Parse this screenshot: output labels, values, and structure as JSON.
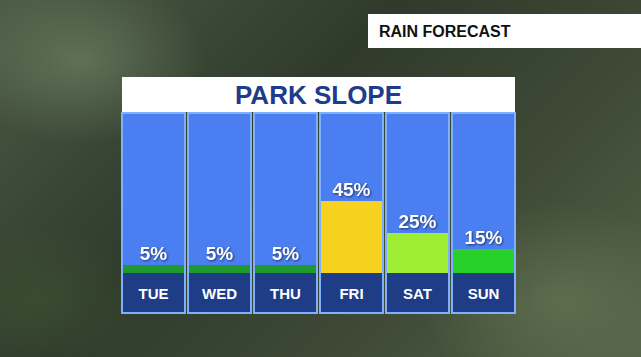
{
  "chart_data": {
    "type": "bar",
    "title": "PARK SLOPE",
    "subtitle": "RAIN FORECAST",
    "categories": [
      "TUE",
      "WED",
      "THU",
      "FRI",
      "SAT",
      "SUN"
    ],
    "values": [
      5,
      5,
      5,
      45,
      25,
      15
    ],
    "value_labels": [
      "5%",
      "5%",
      "5%",
      "45%",
      "25%",
      "15%"
    ],
    "colors": [
      "#1f9a2e",
      "#1f9a2e",
      "#1f9a2e",
      "#f6d21e",
      "#9ded35",
      "#27d12a"
    ],
    "ylim": [
      0,
      100
    ],
    "data_labels": true,
    "tick_labels": "x",
    "grid": false
  }
}
